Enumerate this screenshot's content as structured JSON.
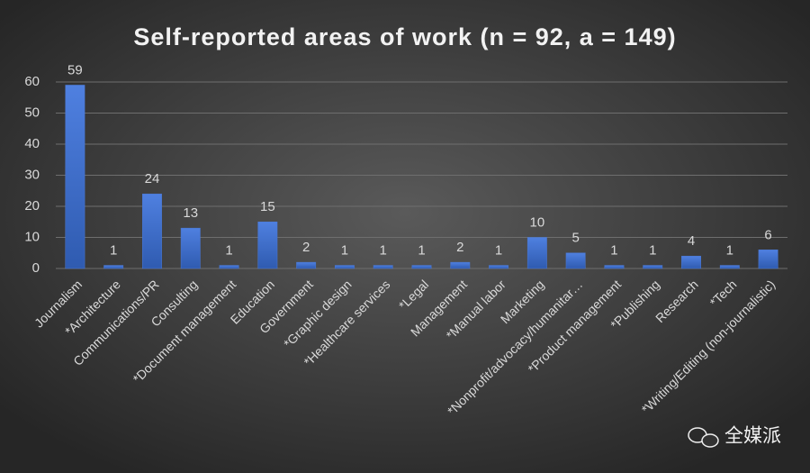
{
  "chart_data": {
    "type": "bar",
    "title": "Self-reported areas of work (n = 92, a = 149)",
    "categories": [
      "Journalism",
      "*Architecture",
      "Communications/PR",
      "Consulting",
      "*Document management",
      "Education",
      "Government",
      "*Graphic design",
      "*Healthcare services",
      "*Legal",
      "Management",
      "*Manual labor",
      "Marketing",
      "*Nonprofit/advocacy/humanitar…",
      "*Product management",
      "*Publishing",
      "Research",
      "*Tech",
      "*Writing/Editing (non-journalistic)"
    ],
    "values": [
      59,
      1,
      24,
      13,
      1,
      15,
      2,
      1,
      1,
      1,
      2,
      1,
      10,
      5,
      1,
      1,
      4,
      1,
      6
    ],
    "color": "#4a78d4",
    "ylim": [
      0,
      60
    ],
    "yticks": [
      0,
      10,
      20,
      30,
      40,
      50,
      60
    ],
    "grid": true,
    "watermark": "全媒派"
  }
}
